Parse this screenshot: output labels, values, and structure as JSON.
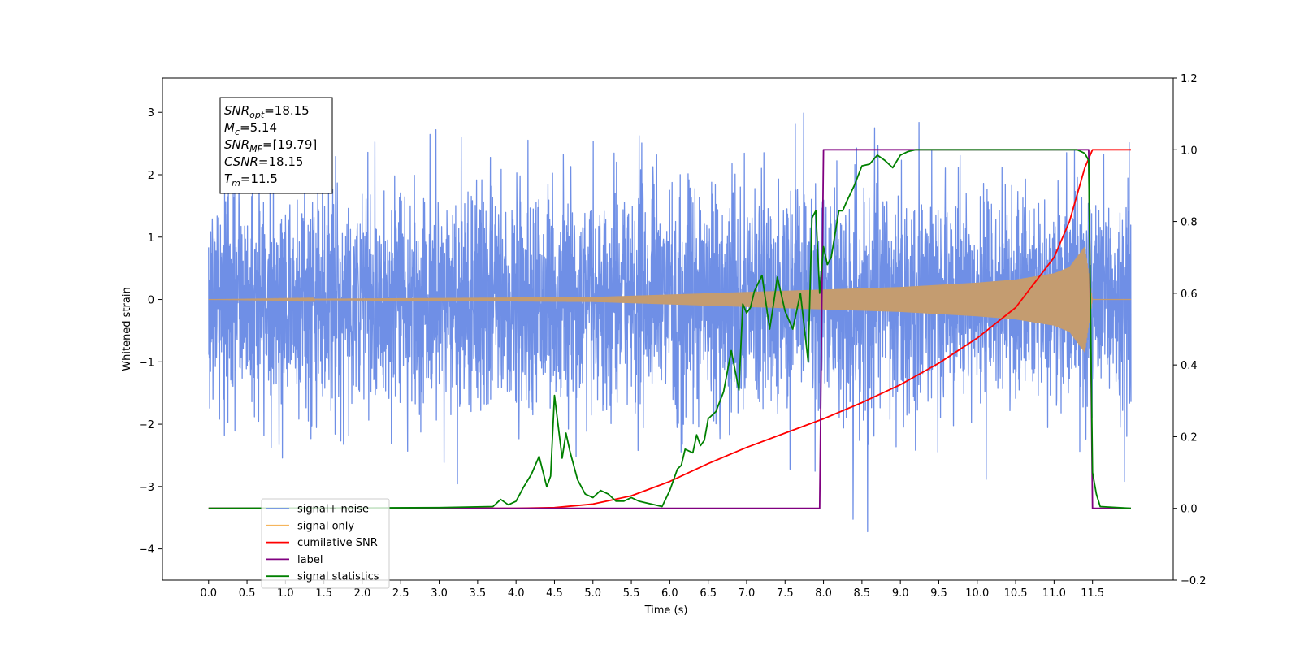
{
  "chart_data": {
    "type": "line",
    "xlabel": "Time (s)",
    "ylabel": "Whitened strain",
    "xlim": [
      -0.6,
      12.55
    ],
    "ylim": [
      -4.5,
      3.55
    ],
    "ylim_right": [
      -0.2,
      1.2
    ],
    "x_ticks": [
      "0.0",
      "0.5",
      "1.0",
      "1.5",
      "2.0",
      "2.5",
      "3.0",
      "3.5",
      "4.0",
      "4.5",
      "5.0",
      "5.5",
      "6.0",
      "6.5",
      "7.0",
      "7.5",
      "8.0",
      "8.5",
      "9.0",
      "9.5",
      "10.0",
      "10.5",
      "11.0",
      "11.5"
    ],
    "y_ticks": [
      "3",
      "2",
      "1",
      "0",
      "−1",
      "−2",
      "−3",
      "−4"
    ],
    "y_ticks_right": [
      "1.2",
      "1.0",
      "0.8",
      "0.6",
      "0.4",
      "0.2",
      "0.0",
      "−0.2"
    ],
    "legend_placement": "lower-left",
    "grid": false,
    "info_box": [
      {
        "base": "SNR",
        "sub": "opt",
        "rest": "=18.15"
      },
      {
        "base": "M",
        "sub": "c",
        "rest": "=5.14"
      },
      {
        "base": "SNR",
        "sub": "MF",
        "rest": "=[19.79]"
      },
      {
        "base": "CSNR",
        "sub": "",
        "rest": "=18.15"
      },
      {
        "base": "T",
        "sub": "m",
        "rest": "=11.5"
      }
    ],
    "series": [
      {
        "name": "signal+ noise",
        "axis": "left",
        "color": "#6f8fe6",
        "description": "whitened noise, std ~0.9, samples spanning 0.0 to 12.0 s",
        "x_range": [
          0.0,
          12.0
        ],
        "y_range_observed": [
          -3.75,
          3.2
        ]
      },
      {
        "name": "signal only",
        "axis": "left",
        "color": "#f5b55c",
        "description": "chirp whose envelope grows from ~0 to ~0.9 before 11.5 s, then 0",
        "x_range": [
          0.0,
          12.0
        ],
        "chirp_envelope": {
          "x": [
            0,
            5,
            6,
            7,
            8,
            9,
            10,
            10.5,
            11,
            11.2,
            11.4,
            11.5,
            12.0
          ],
          "y": [
            0,
            0.04,
            0.08,
            0.12,
            0.16,
            0.2,
            0.27,
            0.32,
            0.42,
            0.52,
            0.85,
            0.0,
            0.0
          ]
        }
      },
      {
        "name": "cumilative SNR",
        "axis": "right",
        "color": "#ff0000",
        "x": [
          0,
          4.0,
          4.5,
          5.0,
          5.5,
          6.0,
          6.5,
          7.0,
          7.5,
          8.0,
          8.5,
          9.0,
          9.5,
          10.0,
          10.5,
          11.0,
          11.2,
          11.4,
          11.5,
          12.0
        ],
        "y": [
          0,
          0.0,
          0.002,
          0.012,
          0.035,
          0.075,
          0.125,
          0.17,
          0.21,
          0.25,
          0.295,
          0.345,
          0.405,
          0.475,
          0.56,
          0.7,
          0.8,
          0.95,
          1.0,
          1.0
        ]
      },
      {
        "name": "label",
        "axis": "right",
        "color": "#800080",
        "x": [
          0,
          7.95,
          8.0,
          11.45,
          11.5,
          12.0
        ],
        "y": [
          0,
          0,
          1,
          1,
          0,
          0
        ]
      },
      {
        "name": "signal statistics",
        "axis": "right",
        "color": "#008000",
        "x": [
          0,
          3.0,
          3.7,
          3.8,
          3.9,
          4.0,
          4.1,
          4.2,
          4.3,
          4.4,
          4.45,
          4.5,
          4.6,
          4.65,
          4.7,
          4.8,
          4.9,
          5.0,
          5.1,
          5.2,
          5.3,
          5.4,
          5.5,
          5.6,
          5.7,
          5.8,
          5.9,
          6.0,
          6.1,
          6.15,
          6.2,
          6.3,
          6.35,
          6.4,
          6.45,
          6.5,
          6.6,
          6.7,
          6.8,
          6.9,
          6.95,
          7.0,
          7.05,
          7.1,
          7.2,
          7.3,
          7.35,
          7.4,
          7.5,
          7.6,
          7.7,
          7.8,
          7.85,
          7.9,
          7.95,
          8.0,
          8.05,
          8.1,
          8.2,
          8.25,
          8.3,
          8.4,
          8.5,
          8.6,
          8.7,
          8.8,
          8.9,
          9.0,
          9.1,
          9.2,
          9.5,
          10.0,
          10.5,
          11.0,
          11.3,
          11.4,
          11.45,
          11.5,
          11.55,
          11.6,
          12.0
        ],
        "y": [
          0,
          0.002,
          0.005,
          0.025,
          0.01,
          0.02,
          0.06,
          0.095,
          0.145,
          0.06,
          0.09,
          0.315,
          0.14,
          0.21,
          0.16,
          0.08,
          0.04,
          0.03,
          0.05,
          0.04,
          0.02,
          0.02,
          0.03,
          0.02,
          0.015,
          0.01,
          0.005,
          0.05,
          0.11,
          0.12,
          0.165,
          0.155,
          0.205,
          0.175,
          0.19,
          0.25,
          0.27,
          0.325,
          0.44,
          0.33,
          0.57,
          0.545,
          0.56,
          0.605,
          0.65,
          0.5,
          0.57,
          0.645,
          0.55,
          0.5,
          0.6,
          0.41,
          0.81,
          0.83,
          0.6,
          0.73,
          0.68,
          0.7,
          0.83,
          0.83,
          0.855,
          0.9,
          0.955,
          0.96,
          0.985,
          0.97,
          0.95,
          0.985,
          0.995,
          1.0,
          1.0,
          1.0,
          1.0,
          1.0,
          1.0,
          0.99,
          0.97,
          0.1,
          0.04,
          0.005,
          0.0
        ]
      }
    ]
  },
  "colors": {
    "noise": "#6f8fe6",
    "signal": "#c49c70",
    "cumsnr": "#ff0000",
    "label": "#800080",
    "stats": "#008000"
  }
}
